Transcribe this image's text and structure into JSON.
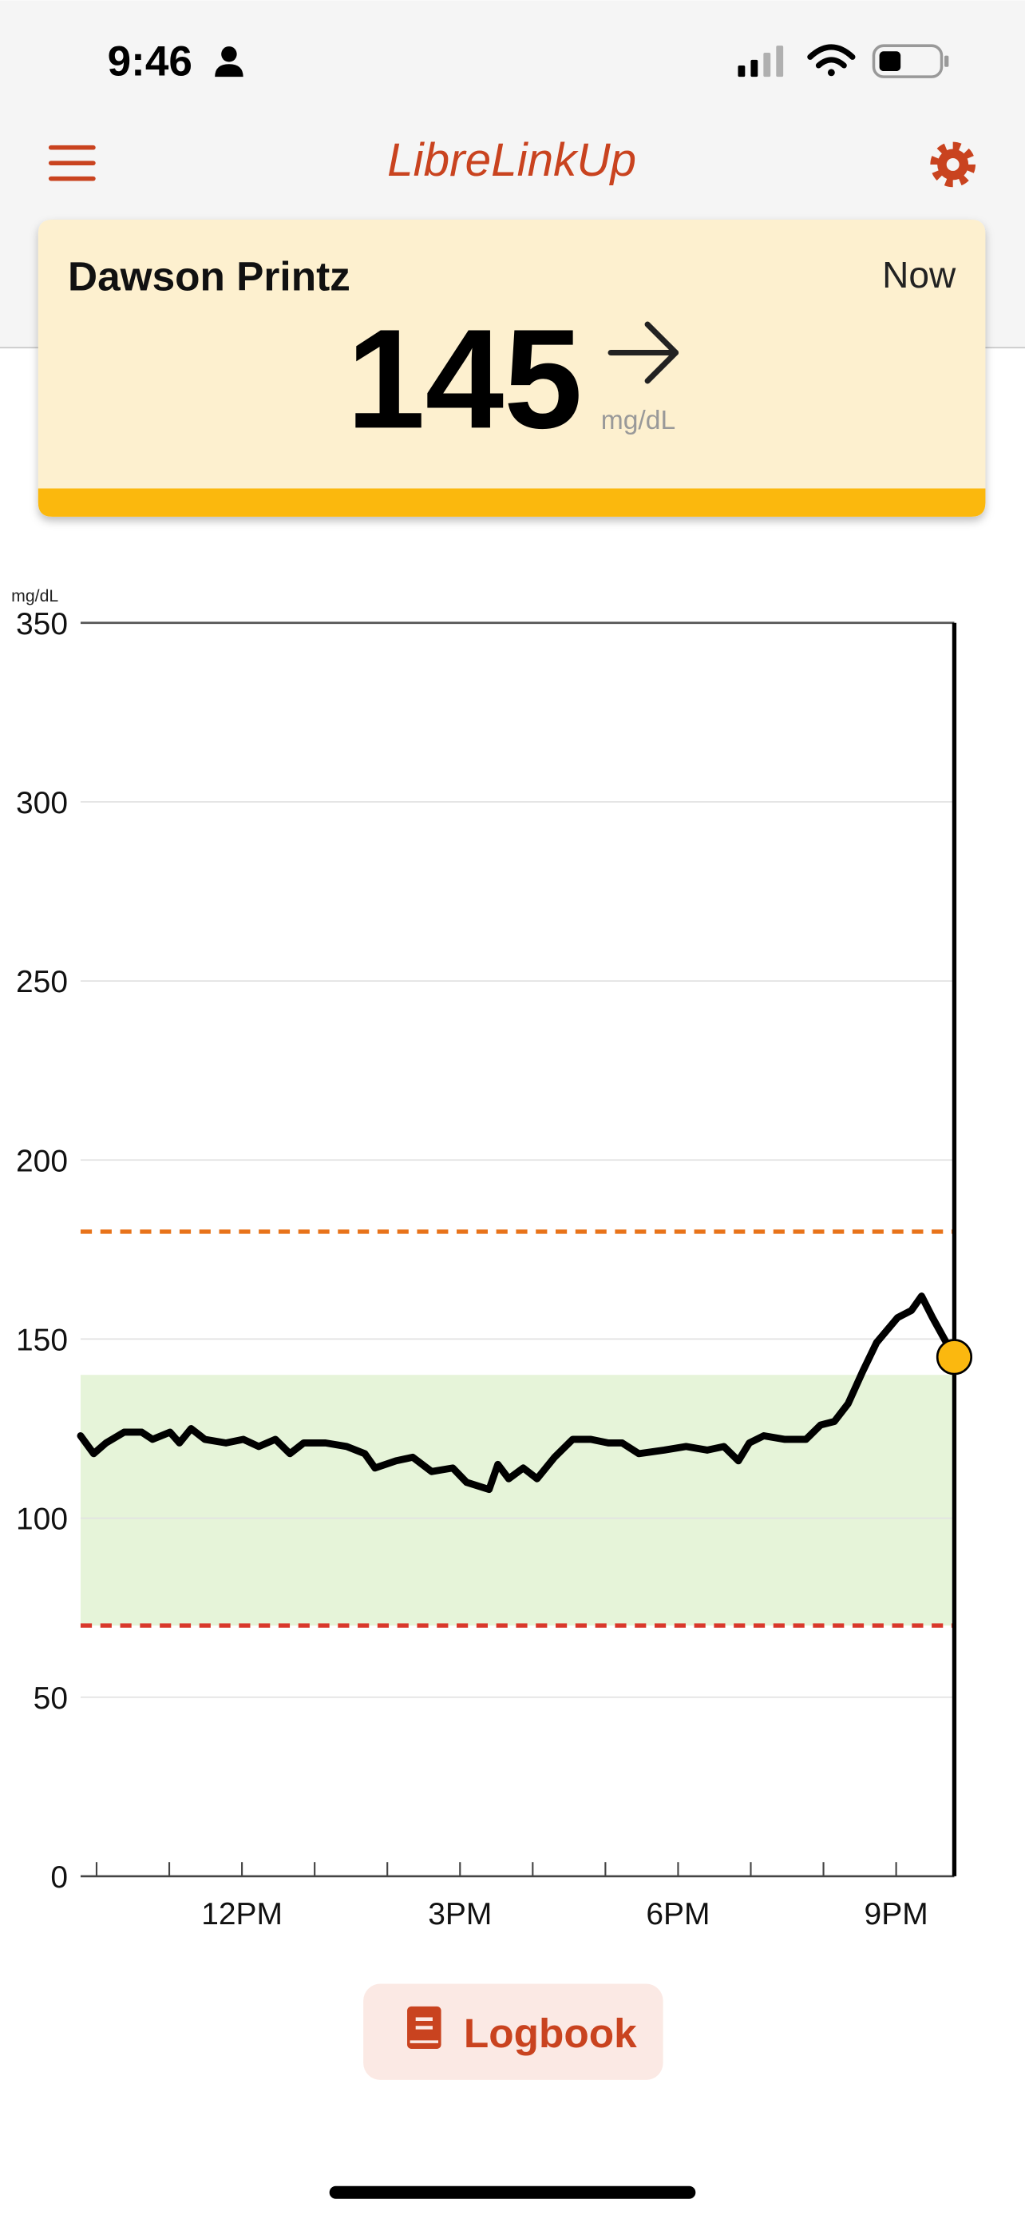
{
  "status_bar": {
    "time": "9:46"
  },
  "header": {
    "title": "LibreLinkUp"
  },
  "card": {
    "name": "Dawson Printz",
    "time": "Now",
    "reading": 145,
    "unit": "mg/dL"
  },
  "chart_data": {
    "type": "line",
    "y_label": "mg/dL",
    "ylim": [
      0,
      350
    ],
    "yticks": [
      0,
      50,
      100,
      150,
      200,
      250,
      300,
      350
    ],
    "xlim": [
      9.78,
      21.8
    ],
    "xticks": [
      {
        "value": 12,
        "label": "12PM"
      },
      {
        "value": 15,
        "label": "3PM"
      },
      {
        "value": 18,
        "label": "6PM"
      },
      {
        "value": 21,
        "label": "9PM"
      }
    ],
    "x_minor_ticks": [
      10,
      11,
      13,
      14,
      16,
      17,
      19,
      20
    ],
    "grid": true,
    "color": "#000000",
    "target_band": [
      70,
      140
    ],
    "band_color": "#e6f4d9",
    "high_line": 180,
    "high_color": "#e8731a",
    "low_line": 70,
    "low_color": "#d9382b",
    "marker_color": "#fbb80f",
    "x": [
      9.78,
      9.96,
      10.13,
      10.38,
      10.62,
      10.77,
      11.01,
      11.14,
      11.3,
      11.49,
      11.78,
      12.02,
      12.23,
      12.46,
      12.66,
      12.85,
      13.15,
      13.44,
      13.69,
      13.83,
      14.12,
      14.35,
      14.61,
      14.9,
      15.09,
      15.4,
      15.52,
      15.67,
      15.87,
      16.06,
      16.3,
      16.55,
      16.8,
      17.04,
      17.23,
      17.46,
      17.81,
      18.11,
      18.4,
      18.63,
      18.83,
      18.98,
      19.18,
      19.47,
      19.76,
      19.96,
      20.15,
      20.34,
      20.54,
      20.73,
      21.02,
      21.21,
      21.35,
      21.5,
      21.8
    ],
    "values": [
      123,
      118,
      121,
      124,
      124,
      122,
      124,
      121,
      125,
      122,
      121,
      122,
      120,
      122,
      118,
      121,
      121,
      120,
      118,
      114,
      116,
      117,
      113,
      114,
      110,
      108,
      115,
      111,
      114,
      111,
      117,
      122,
      122,
      121,
      121,
      118,
      119,
      120,
      119,
      120,
      116,
      121,
      123,
      122,
      122,
      126,
      127,
      132,
      141,
      149,
      156,
      158,
      162,
      156,
      145
    ]
  },
  "button": {
    "label": "Logbook"
  }
}
